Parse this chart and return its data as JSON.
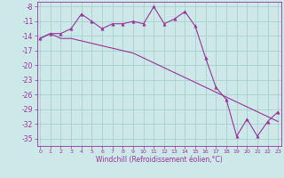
{
  "line1_x": [
    0,
    1,
    2,
    3,
    4,
    5,
    6,
    7,
    8,
    9,
    10,
    11,
    12,
    13,
    14,
    15,
    16,
    17,
    18,
    19,
    20,
    21,
    22,
    23
  ],
  "line1_y": [
    -14.5,
    -13.5,
    -13.5,
    -12.5,
    -9.5,
    -11.0,
    -12.5,
    -11.5,
    -11.5,
    -11.0,
    -11.5,
    -8.0,
    -11.5,
    -10.5,
    -9.0,
    -12.0,
    -18.5,
    -24.5,
    -27.0,
    -34.5,
    -31.0,
    -34.5,
    -31.5,
    -29.5
  ],
  "line2_x": [
    0,
    1,
    2,
    3,
    4,
    5,
    6,
    7,
    8,
    9,
    10,
    11,
    12,
    13,
    14,
    15,
    16,
    17,
    18,
    19,
    20,
    21,
    22,
    23
  ],
  "line2_y": [
    -14.5,
    -13.5,
    -14.5,
    -14.5,
    -15.0,
    -15.5,
    -16.0,
    -16.5,
    -17.0,
    -17.5,
    -18.5,
    -19.5,
    -20.5,
    -21.5,
    -22.5,
    -23.5,
    -24.5,
    -25.5,
    -26.5,
    -27.5,
    -28.5,
    -29.5,
    -30.5,
    -31.5
  ],
  "color": "#993399",
  "bg_color": "#cce8e8",
  "grid_color": "#aacfcf",
  "xlabel": "Windchill (Refroidissement éolien,°C)",
  "ytick_labels": [
    "-8",
    "-11",
    "-14",
    "-17",
    "-20",
    "-23",
    "-26",
    "-29",
    "-32",
    "-35"
  ],
  "yticks": [
    -8,
    -11,
    -14,
    -17,
    -20,
    -23,
    -26,
    -29,
    -32,
    -35
  ],
  "xticks": [
    0,
    1,
    2,
    3,
    4,
    5,
    6,
    7,
    8,
    9,
    10,
    11,
    12,
    13,
    14,
    15,
    16,
    17,
    18,
    19,
    20,
    21,
    22,
    23
  ],
  "ylim": [
    -36.5,
    -7.0
  ],
  "xlim": [
    -0.3,
    23.3
  ]
}
